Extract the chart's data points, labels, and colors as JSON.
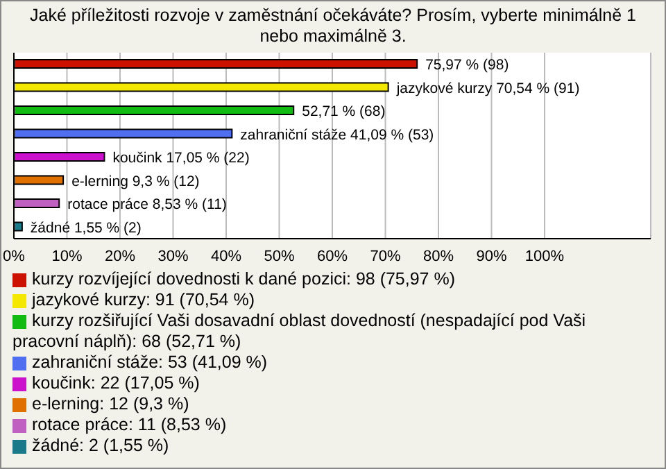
{
  "chart_data": {
    "type": "bar",
    "orientation": "horizontal",
    "stacked": true,
    "title": "Jaké příležitosti rozvoje v zaměstnání očekáváte? Prosím, vyberte minimálně 1 nebo maximálně 3.",
    "categories": [
      null,
      null,
      null,
      null,
      null,
      null,
      null,
      null
    ],
    "series": [
      {
        "name": "kurzy rozvíjející dovednosti k dané pozici: 98 (75,97 %)",
        "color": "#cc1100",
        "values": [
          75.97,
          null,
          null,
          null,
          null,
          null,
          null,
          null
        ],
        "value_labels": [
          "75,97 % (98)",
          null,
          null,
          null,
          null,
          null,
          null,
          null
        ]
      },
      {
        "name": "jazykové kurzy: 91 (70,54 %)",
        "color": "#f5e800",
        "values": [
          null,
          70.54,
          null,
          null,
          null,
          null,
          null,
          null
        ],
        "value_labels": [
          null,
          "jazykové kurzy 70,54 % (91)",
          null,
          null,
          null,
          null,
          null,
          null
        ]
      },
      {
        "name": "kurzy rozšiřující Vaši dosavadní oblast dovedností (nespadající pod Vaši pracovní náplň): 68 (52,71 %)",
        "color": "#11bb11",
        "values": [
          null,
          null,
          52.71,
          null,
          null,
          null,
          null,
          null
        ],
        "value_labels": [
          null,
          null,
          "52,71 % (68)",
          null,
          null,
          null,
          null,
          null
        ]
      },
      {
        "name": "zahraniční stáže: 53 (41,09 %)",
        "color": "#4f6ff0",
        "values": [
          null,
          null,
          null,
          41.09,
          null,
          null,
          null,
          null
        ],
        "value_labels": [
          null,
          null,
          null,
          "zahraniční stáže 41,09 % (53)",
          null,
          null,
          null,
          null
        ]
      },
      {
        "name": "koučink: 22 (17,05 %)",
        "color": "#cc11cc",
        "values": [
          null,
          null,
          null,
          null,
          17.05,
          null,
          null,
          null
        ],
        "value_labels": [
          null,
          null,
          null,
          null,
          "koučink 17,05 % (22)",
          null,
          null,
          null
        ]
      },
      {
        "name": "e-lerning: 12 (9,3 %)",
        "color": "#e07000",
        "values": [
          null,
          null,
          null,
          null,
          null,
          9.3,
          null,
          null
        ],
        "value_labels": [
          null,
          null,
          null,
          null,
          null,
          "e-lerning 9,3 % (12)",
          null,
          null
        ]
      },
      {
        "name": "rotace práce: 11 (8,53 %)",
        "color": "#c060c0",
        "values": [
          null,
          null,
          null,
          null,
          null,
          null,
          8.53,
          null
        ],
        "value_labels": [
          null,
          null,
          null,
          null,
          null,
          null,
          "rotace práce 8,53 % (11)",
          null
        ]
      },
      {
        "name": "žádné: 2 (1,55 %)",
        "color": "#1a7a8a",
        "values": [
          null,
          null,
          null,
          null,
          null,
          null,
          null,
          1.55
        ],
        "value_labels": [
          null,
          null,
          null,
          null,
          null,
          null,
          null,
          "žádné 1,55 % (2)"
        ]
      }
    ],
    "xlim": [
      0,
      120
    ],
    "xticks": [
      {
        "value": 0,
        "label": "0%"
      },
      {
        "value": 10,
        "label": "10%"
      },
      {
        "value": 20,
        "label": "20%"
      },
      {
        "value": 30,
        "label": "30%"
      },
      {
        "value": 40,
        "label": "40%"
      },
      {
        "value": 50,
        "label": "50%"
      },
      {
        "value": 60,
        "label": "60%"
      },
      {
        "value": 70,
        "label": "70%"
      },
      {
        "value": 80,
        "label": "80%"
      },
      {
        "value": 90,
        "label": "90%"
      },
      {
        "value": 100,
        "label": "100%"
      }
    ],
    "grid": "x",
    "legend": "bottom"
  }
}
